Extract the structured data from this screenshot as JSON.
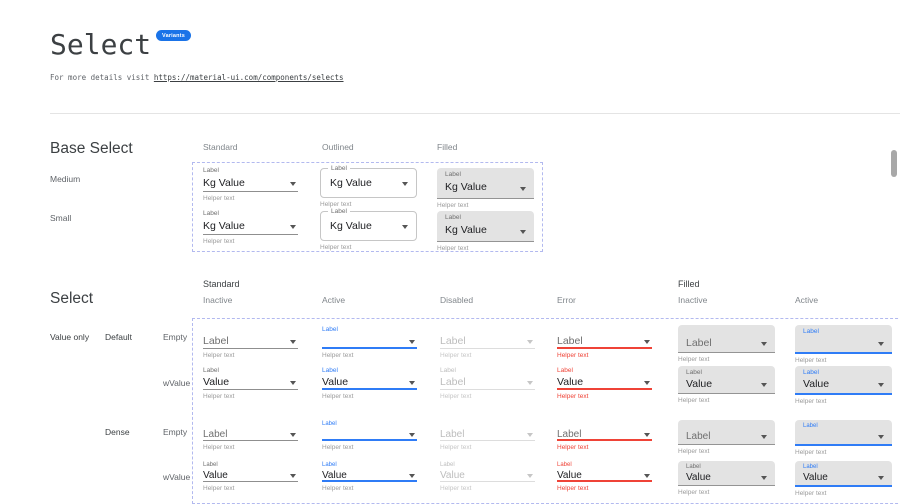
{
  "page": {
    "title": "Select",
    "badge": "Variants",
    "subtitle_prefix": "For more details visit ",
    "subtitle_link": "https://material-ui.com/components/selects"
  },
  "colors": {
    "accent_blue": "#2f7cf6",
    "error_red": "#ef4337",
    "filled_bg": "#e3e3e3",
    "badge_blue": "#1a73e8",
    "dashed_border": "#b2b9ef"
  },
  "base_select": {
    "title": "Base Select",
    "column_headers": [
      "Standard",
      "Outlined",
      "Filled"
    ],
    "rows": [
      {
        "label": "Medium",
        "cells": [
          {
            "variant": "standard",
            "caption": "Label",
            "value": "Kg Value",
            "helper": "Helper text"
          },
          {
            "variant": "outlined",
            "caption": "Label",
            "value": "Kg Value",
            "helper": "Helper text"
          },
          {
            "variant": "filled",
            "caption": "Label",
            "value": "Kg Value",
            "helper": "Helper text"
          }
        ]
      },
      {
        "label": "Small",
        "cells": [
          {
            "variant": "standard",
            "caption": "Label",
            "value": "Kg Value",
            "helper": "Helper text"
          },
          {
            "variant": "outlined",
            "caption": "Label",
            "value": "Kg Value",
            "helper": "Helper text"
          },
          {
            "variant": "filled",
            "caption": "Label",
            "value": "Kg Value",
            "helper": "Helper text"
          }
        ]
      }
    ]
  },
  "select": {
    "title": "Select",
    "column_groups": [
      "Standard",
      "Filled"
    ],
    "column_headers": [
      "Inactive",
      "Active",
      "Disabled",
      "Error",
      "Inactive",
      "Active"
    ],
    "row_category": "Value only",
    "row_groups": [
      {
        "label": "Default",
        "rows": [
          {
            "label": "Empty",
            "dense": false,
            "cells": [
              {
                "variant": "standard",
                "state": "inactive",
                "caption": "",
                "value": "Label",
                "placeholder": true,
                "helper": "Helper text"
              },
              {
                "variant": "standard",
                "state": "active",
                "caption": "Label",
                "value": "",
                "placeholder": true,
                "helper": "Helper text"
              },
              {
                "variant": "standard",
                "state": "disabled",
                "caption": "",
                "value": "Label",
                "placeholder": true,
                "helper": "Helper text"
              },
              {
                "variant": "standard",
                "state": "error",
                "caption": "",
                "value": "Label",
                "placeholder": true,
                "helper": "Helper text"
              },
              {
                "variant": "filled",
                "state": "inactive",
                "caption": "",
                "value": "Label",
                "placeholder": true,
                "helper": "Helper text"
              },
              {
                "variant": "filled",
                "state": "active",
                "caption": "Label",
                "value": "",
                "placeholder": true,
                "helper": "Helper text"
              }
            ]
          },
          {
            "label": "wValue",
            "dense": false,
            "cells": [
              {
                "variant": "standard",
                "state": "inactive",
                "caption": "Label",
                "value": "Value",
                "placeholder": false,
                "helper": "Helper text"
              },
              {
                "variant": "standard",
                "state": "active",
                "caption": "Label",
                "value": "Value",
                "placeholder": false,
                "helper": "Helper text"
              },
              {
                "variant": "standard",
                "state": "disabled",
                "caption": "Label",
                "value": "Label",
                "placeholder": false,
                "helper": "Helper text"
              },
              {
                "variant": "standard",
                "state": "error",
                "caption": "Label",
                "value": "Value",
                "placeholder": false,
                "helper": "Helper text"
              },
              {
                "variant": "filled",
                "state": "inactive",
                "caption": "Label",
                "value": "Value",
                "placeholder": false,
                "helper": "Helper text"
              },
              {
                "variant": "filled",
                "state": "active",
                "caption": "Label",
                "value": "Value",
                "placeholder": false,
                "helper": "Helper text"
              }
            ]
          }
        ]
      },
      {
        "label": "Dense",
        "rows": [
          {
            "label": "Empty",
            "dense": true,
            "cells": [
              {
                "variant": "standard",
                "state": "inactive",
                "caption": "",
                "value": "Label",
                "placeholder": true,
                "helper": "Helper text"
              },
              {
                "variant": "standard",
                "state": "active",
                "caption": "Label",
                "value": "",
                "placeholder": true,
                "helper": "Helper text"
              },
              {
                "variant": "standard",
                "state": "disabled",
                "caption": "",
                "value": "Label",
                "placeholder": true,
                "helper": "Helper text"
              },
              {
                "variant": "standard",
                "state": "error",
                "caption": "",
                "value": "Label",
                "placeholder": true,
                "helper": "Helper text"
              },
              {
                "variant": "filled",
                "state": "inactive",
                "caption": "",
                "value": "Label",
                "placeholder": true,
                "helper": "Helper text"
              },
              {
                "variant": "filled",
                "state": "active",
                "caption": "Label",
                "value": "",
                "placeholder": true,
                "helper": "Helper text"
              }
            ]
          },
          {
            "label": "wValue",
            "dense": true,
            "cells": [
              {
                "variant": "standard",
                "state": "inactive",
                "caption": "Label",
                "value": "Value",
                "placeholder": false,
                "helper": "Helper text"
              },
              {
                "variant": "standard",
                "state": "active",
                "caption": "Label",
                "value": "Value",
                "placeholder": false,
                "helper": "Helper text"
              },
              {
                "variant": "standard",
                "state": "disabled",
                "caption": "Label",
                "value": "Value",
                "placeholder": false,
                "helper": "Helper text"
              },
              {
                "variant": "standard",
                "state": "error",
                "caption": "Label",
                "value": "Value",
                "placeholder": false,
                "helper": "Helper text"
              },
              {
                "variant": "filled",
                "state": "inactive",
                "caption": "Label",
                "value": "Value",
                "placeholder": false,
                "helper": "Helper text"
              },
              {
                "variant": "filled",
                "state": "active",
                "caption": "Label",
                "value": "Value",
                "placeholder": false,
                "helper": "Helper text"
              }
            ]
          }
        ]
      }
    ]
  }
}
